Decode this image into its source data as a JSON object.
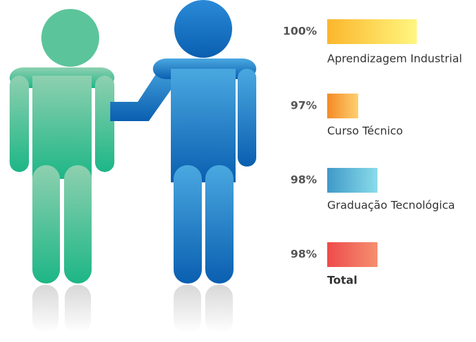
{
  "items": [
    {
      "value": "100%",
      "label": "Aprendizagem Industrial"
    },
    {
      "value": "97%",
      "label": "Curso Técnico"
    },
    {
      "value": "98%",
      "label": "Graduação Tecnológica"
    },
    {
      "value": "98%",
      "label": "Total"
    }
  ]
}
